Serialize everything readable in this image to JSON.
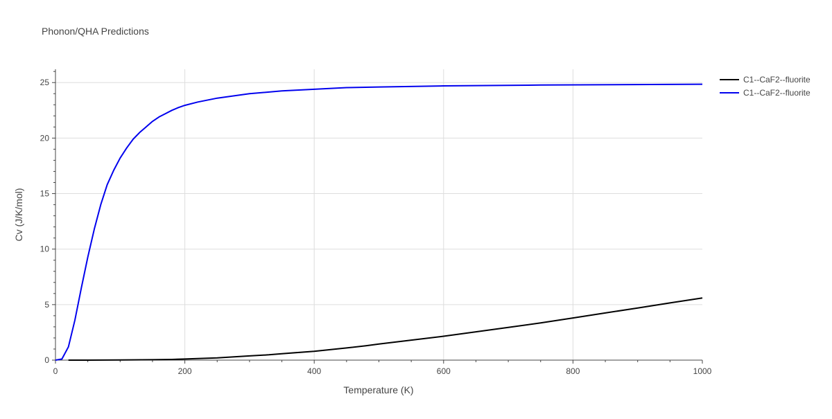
{
  "chart_data": {
    "type": "line",
    "title": "Phonon/QHA Predictions",
    "xlabel": "Temperature (K)",
    "ylabel": "Cv (J/K/mol)",
    "xlim": [
      0,
      1000
    ],
    "ylim": [
      0,
      26.2
    ],
    "x_ticks": [
      0,
      200,
      400,
      600,
      800,
      1000
    ],
    "y_ticks": [
      0,
      5,
      10,
      15,
      20,
      25
    ],
    "grid": true,
    "legend_position": "top-right",
    "series": [
      {
        "name": "C1--CaF2--fluorite",
        "color": "#000000",
        "x": [
          20,
          50,
          100,
          150,
          180,
          200,
          250,
          300,
          330,
          350,
          400,
          450,
          480,
          500,
          550,
          600,
          650,
          700,
          750,
          800,
          850,
          900,
          950,
          1000
        ],
        "y": [
          0.0,
          0.0,
          0.02,
          0.04,
          0.06,
          0.1,
          0.2,
          0.38,
          0.48,
          0.58,
          0.8,
          1.1,
          1.3,
          1.45,
          1.8,
          2.15,
          2.55,
          2.95,
          3.35,
          3.8,
          4.25,
          4.7,
          5.15,
          5.6
        ]
      },
      {
        "name": "C1--CaF2--fluorite",
        "color": "#0000ee",
        "x": [
          0,
          10,
          20,
          30,
          40,
          50,
          60,
          70,
          80,
          90,
          100,
          110,
          120,
          130,
          140,
          150,
          160,
          170,
          180,
          190,
          200,
          220,
          250,
          300,
          350,
          400,
          450,
          500,
          600,
          750,
          1000
        ],
        "y": [
          0.0,
          0.1,
          1.2,
          3.6,
          6.5,
          9.3,
          11.8,
          14.0,
          15.8,
          17.1,
          18.2,
          19.1,
          19.9,
          20.5,
          21.0,
          21.5,
          21.9,
          22.2,
          22.5,
          22.75,
          22.95,
          23.25,
          23.6,
          24.0,
          24.25,
          24.4,
          24.55,
          24.6,
          24.7,
          24.78,
          24.85
        ]
      }
    ]
  }
}
